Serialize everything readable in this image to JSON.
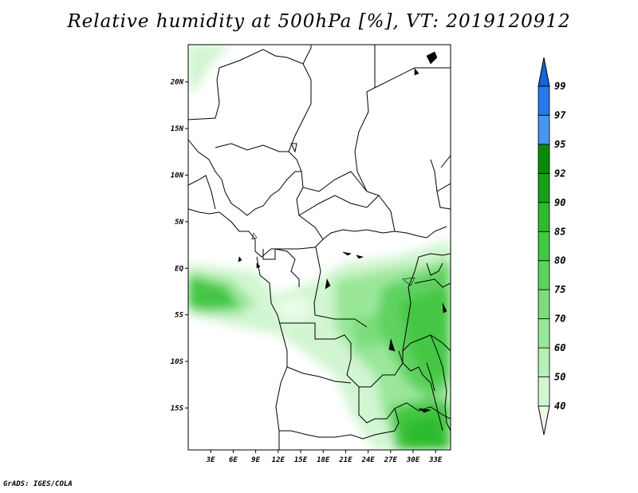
{
  "title": "Relative humidity at 500hPa [%], VT: 2019120912",
  "credit": "GrADS: IGES/COLA",
  "map": {
    "lon_range": [
      0,
      35
    ],
    "lat_range": [
      -19.5,
      24
    ],
    "lon_ticks": [
      "3E",
      "6E",
      "9E",
      "12E",
      "15E",
      "18E",
      "21E",
      "24E",
      "27E",
      "30E",
      "33E"
    ],
    "lat_ticks": [
      "20N",
      "15N",
      "10N",
      "5N",
      "EQ",
      "5S",
      "10S",
      "15S"
    ]
  },
  "colorbar": {
    "levels": [
      "40",
      "50",
      "60",
      "70",
      "75",
      "80",
      "85",
      "90",
      "92",
      "95",
      "97",
      "99"
    ],
    "colors": [
      "#eafbea",
      "#d2f5d2",
      "#b8efb8",
      "#9ae79a",
      "#7ddd7d",
      "#5fd25f",
      "#44c744",
      "#2ebb2e",
      "#1a9f1a",
      "#0a8a0a",
      "#4696f0",
      "#2878e8",
      "#1464dc"
    ]
  }
}
